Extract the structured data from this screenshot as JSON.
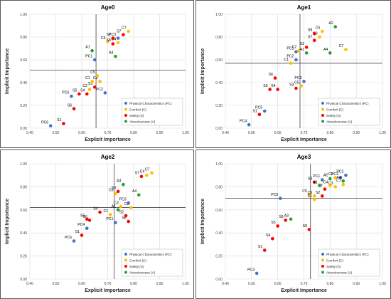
{
  "legend_entries": [
    {
      "name": "Physical Characteristics (PC)",
      "color": "#4472C4"
    },
    {
      "name": "Comfort (C)",
      "color": "#FFC000"
    },
    {
      "name": "Safety (S)",
      "color": "#FF0000"
    },
    {
      "name": "Attractiveness (A)",
      "color": "#339933"
    }
  ],
  "chart_data": [
    {
      "type": "scatter",
      "title": "Age0",
      "xlabel": "Explicit Importance",
      "ylabel": "Implicit Importance",
      "xlim": [
        0.4,
        1.0
      ],
      "ylim": [
        0.0,
        1.0
      ],
      "x_ticks": [
        "0.40",
        "0.50",
        "0.60",
        "0.70",
        "0.80",
        "0.90",
        "1.00"
      ],
      "y_ticks": [
        "0.00",
        "0.20",
        "0.40",
        "0.60",
        "0.80",
        "1.00"
      ],
      "grid": true,
      "legend_position": "bottom-right",
      "reference_lines": {
        "x": 0.655,
        "y": 0.51
      },
      "points": [
        {
          "label": "PC6",
          "x": 0.48,
          "y": 0.02,
          "group": "PC"
        },
        {
          "label": "S1",
          "x": 0.53,
          "y": 0.04,
          "group": "S"
        },
        {
          "label": "S6",
          "x": 0.57,
          "y": 0.17,
          "group": "S"
        },
        {
          "label": "PC5",
          "x": 0.56,
          "y": 0.28,
          "group": "PC"
        },
        {
          "label": "S5",
          "x": 0.59,
          "y": 0.3,
          "group": "S"
        },
        {
          "label": "S4",
          "x": 0.62,
          "y": 0.3,
          "group": "S"
        },
        {
          "label": "C2",
          "x": 0.63,
          "y": 0.34,
          "group": "C"
        },
        {
          "label": "S3",
          "x": 0.65,
          "y": 0.36,
          "group": "S"
        },
        {
          "label": "C3",
          "x": 0.67,
          "y": 0.41,
          "group": "C"
        },
        {
          "label": "PC2",
          "x": 0.69,
          "y": 0.31,
          "group": "PC"
        },
        {
          "label": "C1",
          "x": 0.64,
          "y": 0.41,
          "group": "C"
        },
        {
          "label": "C5",
          "x": 0.66,
          "y": 0.46,
          "group": "C"
        },
        {
          "label": "PC1",
          "x": 0.65,
          "y": 0.6,
          "group": "PC"
        },
        {
          "label": "A1",
          "x": 0.64,
          "y": 0.68,
          "group": "A"
        },
        {
          "label": "A4",
          "x": 0.73,
          "y": 0.63,
          "group": "A"
        },
        {
          "label": "C6",
          "x": 0.7,
          "y": 0.76,
          "group": "C"
        },
        {
          "label": "S8",
          "x": 0.72,
          "y": 0.74,
          "group": "S"
        },
        {
          "label": "C4",
          "x": 0.74,
          "y": 0.75,
          "group": "C"
        },
        {
          "label": "S2",
          "x": 0.72,
          "y": 0.79,
          "group": "S"
        },
        {
          "label": "PC3",
          "x": 0.74,
          "y": 0.79,
          "group": "PC"
        },
        {
          "label": "S7",
          "x": 0.76,
          "y": 0.82,
          "group": "S"
        },
        {
          "label": "C7",
          "x": 0.78,
          "y": 0.85,
          "group": "C"
        }
      ]
    },
    {
      "type": "scatter",
      "title": "Age1",
      "xlabel": "Explicit Importance",
      "ylabel": "Implicit Importance",
      "xlim": [
        0.4,
        1.0
      ],
      "ylim": [
        0.0,
        1.0
      ],
      "x_ticks": [
        "0.40",
        "0.50",
        "0.60",
        "0.70",
        "0.80",
        "0.90",
        "1.00"
      ],
      "y_ticks": [
        "0.00",
        "0.20",
        "0.40",
        "0.60",
        "0.80",
        "1.00"
      ],
      "grid": true,
      "legend_position": "bottom-right",
      "reference_lines": {
        "x": 0.685,
        "y": 0.57
      },
      "points": [
        {
          "label": "PC4",
          "x": 0.49,
          "y": 0.03,
          "group": "PC"
        },
        {
          "label": "S1",
          "x": 0.53,
          "y": 0.12,
          "group": "S"
        },
        {
          "label": "PC5",
          "x": 0.55,
          "y": 0.15,
          "group": "PC"
        },
        {
          "label": "S5",
          "x": 0.57,
          "y": 0.34,
          "group": "S"
        },
        {
          "label": "S4",
          "x": 0.6,
          "y": 0.34,
          "group": "S"
        },
        {
          "label": "S6",
          "x": 0.59,
          "y": 0.44,
          "group": "S"
        },
        {
          "label": "S3",
          "x": 0.67,
          "y": 0.35,
          "group": "S"
        },
        {
          "label": "C5",
          "x": 0.69,
          "y": 0.37,
          "group": "C"
        },
        {
          "label": "PC3",
          "x": 0.7,
          "y": 0.41,
          "group": "PC"
        },
        {
          "label": "C1",
          "x": 0.65,
          "y": 0.57,
          "group": "C"
        },
        {
          "label": "PC2",
          "x": 0.67,
          "y": 0.6,
          "group": "PC"
        },
        {
          "label": "PC1",
          "x": 0.67,
          "y": 0.67,
          "group": "PC"
        },
        {
          "label": "C2",
          "x": 0.68,
          "y": 0.68,
          "group": "C"
        },
        {
          "label": "A1",
          "x": 0.71,
          "y": 0.66,
          "group": "A"
        },
        {
          "label": "S2",
          "x": 0.71,
          "y": 0.71,
          "group": "S"
        },
        {
          "label": "A4",
          "x": 0.8,
          "y": 0.66,
          "group": "A"
        },
        {
          "label": "C7",
          "x": 0.86,
          "y": 0.69,
          "group": "C"
        },
        {
          "label": "S7",
          "x": 0.74,
          "y": 0.77,
          "group": "S"
        },
        {
          "label": "C3",
          "x": 0.76,
          "y": 0.8,
          "group": "C"
        },
        {
          "label": "S8",
          "x": 0.74,
          "y": 0.83,
          "group": "S"
        },
        {
          "label": "C6",
          "x": 0.77,
          "y": 0.85,
          "group": "C"
        },
        {
          "label": "A2",
          "x": 0.82,
          "y": 0.89,
          "group": "A"
        }
      ]
    },
    {
      "type": "scatter",
      "title": "Age2",
      "xlabel": "Explicit Importance",
      "ylabel": "Implicit Importance",
      "xlim": [
        0.4,
        1.0
      ],
      "ylim": [
        0.0,
        1.0
      ],
      "x_ticks": [
        "0.40",
        "0.50",
        "0.60",
        "0.70",
        "0.80",
        "0.90",
        "1.00"
      ],
      "y_ticks": [
        "0.00",
        "0.20",
        "0.40",
        "0.60",
        "0.80",
        "1.00"
      ],
      "grid": true,
      "legend_position": "bottom-right",
      "reference_lines": {
        "x": 0.725,
        "y": 0.62
      },
      "points": [
        {
          "label": "PC6",
          "x": 0.57,
          "y": 0.33,
          "group": "PC"
        },
        {
          "label": "S1",
          "x": 0.6,
          "y": 0.38,
          "group": "S"
        },
        {
          "label": "PC4",
          "x": 0.62,
          "y": 0.44,
          "group": "PC"
        },
        {
          "label": "S6",
          "x": 0.63,
          "y": 0.51,
          "group": "S"
        },
        {
          "label": "S5",
          "x": 0.62,
          "y": 0.52,
          "group": "S"
        },
        {
          "label": "S4",
          "x": 0.67,
          "y": 0.58,
          "group": "S"
        },
        {
          "label": "C1",
          "x": 0.71,
          "y": 0.56,
          "group": "C"
        },
        {
          "label": "PC1",
          "x": 0.73,
          "y": 0.49,
          "group": "PC"
        },
        {
          "label": "S8",
          "x": 0.78,
          "y": 0.5,
          "group": "S"
        },
        {
          "label": "S2",
          "x": 0.77,
          "y": 0.55,
          "group": "S"
        },
        {
          "label": "A1",
          "x": 0.74,
          "y": 0.6,
          "group": "A"
        },
        {
          "label": "C3",
          "x": 0.75,
          "y": 0.63,
          "group": "C"
        },
        {
          "label": "C6",
          "x": 0.79,
          "y": 0.62,
          "group": "C"
        },
        {
          "label": "PC3",
          "x": 0.78,
          "y": 0.66,
          "group": "PC"
        },
        {
          "label": "C5",
          "x": 0.73,
          "y": 0.74,
          "group": "C"
        },
        {
          "label": "S3",
          "x": 0.74,
          "y": 0.76,
          "group": "S"
        },
        {
          "label": "A3",
          "x": 0.76,
          "y": 0.82,
          "group": "A"
        },
        {
          "label": "A4",
          "x": 0.82,
          "y": 0.73,
          "group": "A"
        },
        {
          "label": "S7",
          "x": 0.83,
          "y": 0.89,
          "group": "S"
        },
        {
          "label": "C4",
          "x": 0.85,
          "y": 0.9,
          "group": "C"
        },
        {
          "label": "C7",
          "x": 0.87,
          "y": 0.92,
          "group": "C"
        }
      ]
    },
    {
      "type": "scatter",
      "title": "Age3",
      "xlabel": "Explicit Importance",
      "ylabel": "Implicit Importance",
      "xlim": [
        0.4,
        1.0
      ],
      "ylim": [
        0.0,
        1.0
      ],
      "x_ticks": [
        "0.40",
        "0.50",
        "0.60",
        "0.70",
        "0.80",
        "0.90",
        "1.00"
      ],
      "y_ticks": [
        "0.00",
        "0.20",
        "0.40",
        "0.60",
        "0.80",
        "1.00"
      ],
      "grid": true,
      "legend_position": "bottom-right",
      "reference_lines": {
        "x": 0.725,
        "y": 0.7
      },
      "points": [
        {
          "label": "PC4",
          "x": 0.52,
          "y": 0.05,
          "group": "PC"
        },
        {
          "label": "S1",
          "x": 0.55,
          "y": 0.25,
          "group": "S"
        },
        {
          "label": "S4",
          "x": 0.58,
          "y": 0.35,
          "group": "S"
        },
        {
          "label": "S5",
          "x": 0.6,
          "y": 0.46,
          "group": "S"
        },
        {
          "label": "S6",
          "x": 0.63,
          "y": 0.51,
          "group": "S"
        },
        {
          "label": "A3",
          "x": 0.65,
          "y": 0.52,
          "group": "A"
        },
        {
          "label": "S8",
          "x": 0.72,
          "y": 0.43,
          "group": "S"
        },
        {
          "label": "PC5",
          "x": 0.61,
          "y": 0.7,
          "group": "PC"
        },
        {
          "label": "C5",
          "x": 0.72,
          "y": 0.73,
          "group": "C"
        },
        {
          "label": "C1",
          "x": 0.74,
          "y": 0.69,
          "group": "C"
        },
        {
          "label": "C6",
          "x": 0.74,
          "y": 0.72,
          "group": "C"
        },
        {
          "label": "S3",
          "x": 0.74,
          "y": 0.84,
          "group": "S"
        },
        {
          "label": "S2",
          "x": 0.77,
          "y": 0.72,
          "group": "S"
        },
        {
          "label": "S7",
          "x": 0.78,
          "y": 0.78,
          "group": "S"
        },
        {
          "label": "A1",
          "x": 0.76,
          "y": 0.81,
          "group": "A"
        },
        {
          "label": "PC1",
          "x": 0.77,
          "y": 0.86,
          "group": "PC"
        },
        {
          "label": "C4",
          "x": 0.8,
          "y": 0.81,
          "group": "C"
        },
        {
          "label": "C3",
          "x": 0.82,
          "y": 0.8,
          "group": "C"
        },
        {
          "label": "A2",
          "x": 0.8,
          "y": 0.87,
          "group": "A"
        },
        {
          "label": "C2",
          "x": 0.82,
          "y": 0.88,
          "group": "C"
        },
        {
          "label": "PC3",
          "x": 0.84,
          "y": 0.88,
          "group": "PC"
        },
        {
          "label": "A4",
          "x": 0.85,
          "y": 0.85,
          "group": "A"
        },
        {
          "label": "C7",
          "x": 0.85,
          "y": 0.82,
          "group": "C"
        },
        {
          "label": "PC2",
          "x": 0.86,
          "y": 0.9,
          "group": "PC"
        }
      ]
    }
  ]
}
